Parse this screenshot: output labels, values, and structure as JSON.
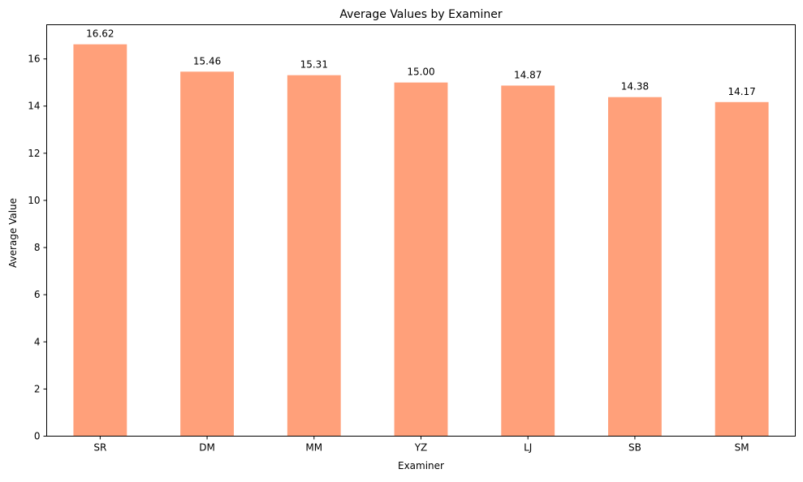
{
  "chart_data": {
    "type": "bar",
    "title": "Average Values by Examiner",
    "xlabel": "Examiner",
    "ylabel": "Average Value",
    "categories": [
      "SR",
      "DM",
      "MM",
      "YZ",
      "LJ",
      "SB",
      "SM"
    ],
    "values": [
      16.62,
      15.46,
      15.31,
      15.0,
      14.87,
      14.38,
      14.17
    ],
    "value_labels": [
      "16.62",
      "15.46",
      "15.31",
      "15.00",
      "14.87",
      "14.38",
      "14.17"
    ],
    "ylim": [
      0,
      17.45
    ],
    "yticks": [
      0,
      2,
      4,
      6,
      8,
      10,
      12,
      14,
      16
    ],
    "ytick_labels": [
      "0",
      "2",
      "4",
      "6",
      "8",
      "10",
      "12",
      "14",
      "16"
    ],
    "bar_color": "#ffa07a",
    "grid": false,
    "legend": "none"
  }
}
